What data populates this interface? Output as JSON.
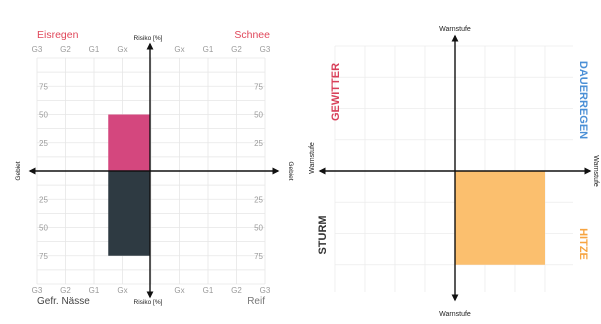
{
  "chart_data": [
    {
      "type": "bar",
      "corner_labels": {
        "top_left": "Eisregen",
        "top_right": "Schnee",
        "bottom_left": "Gefr. Nässe",
        "bottom_right": "Reif"
      },
      "y_axis_label_top": "Risiko [%]",
      "y_axis_label_bottom": "Risiko [%]",
      "x_axis_label_left": "Gebiet",
      "x_axis_label_right": "Gebiet",
      "x_ticks": [
        "G3",
        "G2",
        "G1",
        "Gx",
        "Gx",
        "G1",
        "G2",
        "G3"
      ],
      "y_ticks_upper": [
        "75",
        "50",
        "25"
      ],
      "y_ticks_lower": [
        "25",
        "50",
        "75"
      ],
      "bars": [
        {
          "quadrant": "top-left",
          "x_from": "G1",
          "x_to": "Gx",
          "value": 50,
          "color": "#d4477e"
        },
        {
          "quadrant": "bottom-left",
          "x_from": "G1",
          "x_to": "Gx",
          "value": 75,
          "color": "#2e3a42"
        }
      ],
      "ylim": [
        -100,
        100
      ],
      "grid": true,
      "colors": {
        "corner_top": "#e0475a",
        "corner_bottom": "#555555"
      }
    },
    {
      "type": "bar",
      "quadrant_labels": {
        "left_upper": "GEWITTER",
        "right_upper": "DAUERREGEN",
        "left_lower": "STURM",
        "right_lower": "HITZE"
      },
      "axis_label_top": "Warnstufe",
      "axis_label_bottom": "Warnstufe",
      "axis_label_left": "Warnstufe",
      "axis_label_right": "Warnstufe",
      "areas": [
        {
          "quadrant": "bottom-right",
          "x_level": 3,
          "y_level": 3,
          "color": "#fbbf6e"
        }
      ],
      "levels_per_side": 4,
      "grid": true,
      "colors": {
        "gewitter": "#d8405a",
        "dauerregen": "#4a8fd6",
        "sturm": "#333333",
        "hitze": "#f7a440"
      }
    }
  ]
}
